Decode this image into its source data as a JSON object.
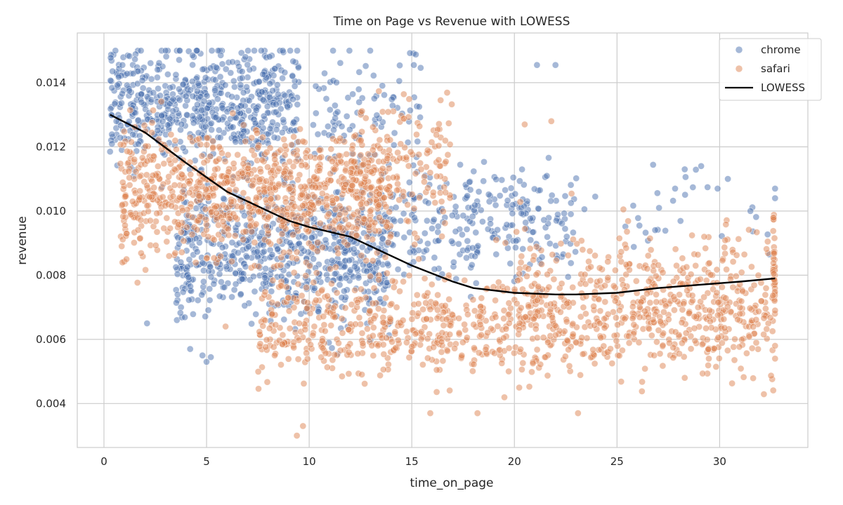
{
  "chart_data": {
    "type": "scatter",
    "title": "Time on Page vs Revenue with LOWESS",
    "xlabel": "time_on_page",
    "ylabel": "revenue",
    "xlim": [
      -1.3,
      34.3
    ],
    "ylim": [
      0.00263,
      0.01555
    ],
    "xticks": [
      0,
      5,
      10,
      15,
      20,
      25,
      30
    ],
    "yticks": [
      0.004,
      0.006,
      0.008,
      0.01,
      0.012,
      0.014
    ],
    "x_tick_labels": [
      "0",
      "5",
      "10",
      "15",
      "20",
      "25",
      "30"
    ],
    "y_tick_labels": [
      "0.004",
      "0.006",
      "0.008",
      "0.010",
      "0.012",
      "0.014"
    ],
    "grid": true,
    "legend_position": "top-right",
    "series": [
      {
        "name": "chrome",
        "color": "#4c72b0",
        "opacity": 0.5,
        "clusters": [
          {
            "x_range": [
              0.3,
              9.5
            ],
            "y_mean": 0.0133,
            "y_sd": 0.0009,
            "count": 620,
            "y_max": 0.015
          },
          {
            "x_range": [
              3.5,
              14.0
            ],
            "y_mean": 0.0088,
            "y_sd": 0.001,
            "count": 700
          },
          {
            "x_range": [
              10.0,
              15.5
            ],
            "y_mean": 0.013,
            "y_sd": 0.001,
            "count": 90,
            "y_max": 0.015
          },
          {
            "x_range": [
              14.0,
              23.0
            ],
            "y_mean": 0.0095,
            "y_sd": 0.0009,
            "count": 250
          },
          {
            "x_range": [
              23.0,
              32.7
            ],
            "y_mean": 0.01,
            "y_sd": 0.0007,
            "count": 30
          }
        ],
        "points": [
          [
            21.1,
            0.01455
          ],
          [
            22.0,
            0.01455
          ],
          [
            15.1,
            0.01455
          ],
          [
            0.3,
            0.01185
          ],
          [
            4.2,
            0.0057
          ],
          [
            4.8,
            0.0055
          ],
          [
            5.0,
            0.0053
          ],
          [
            2.1,
            0.0065
          ],
          [
            28.3,
            0.0113
          ],
          [
            29.1,
            0.0114
          ],
          [
            30.4,
            0.011
          ],
          [
            29.9,
            0.0107
          ],
          [
            32.7,
            0.0107
          ],
          [
            32.7,
            0.0104
          ],
          [
            31.5,
            0.01
          ]
        ]
      },
      {
        "name": "safari",
        "color": "#dd8452",
        "opacity": 0.5,
        "clusters": [
          {
            "x_range": [
              0.8,
              14.0
            ],
            "y_mean": 0.0105,
            "y_sd": 0.001,
            "count": 900
          },
          {
            "x_range": [
              12.0,
              17.0
            ],
            "y_mean": 0.0114,
            "y_sd": 0.001,
            "count": 160
          },
          {
            "x_range": [
              7.5,
              32.7
            ],
            "y_mean": 0.0064,
            "y_sd": 0.0008,
            "count": 900
          },
          {
            "x_range": [
              20.0,
              32.7
            ],
            "y_mean": 0.008,
            "y_sd": 0.0008,
            "count": 220
          },
          {
            "x_range": [
              32.6,
              32.7
            ],
            "y_mean": 0.0083,
            "y_sd": 0.0008,
            "count": 40
          }
        ],
        "points": [
          [
            9.4,
            0.003
          ],
          [
            9.7,
            0.0033
          ],
          [
            15.9,
            0.0037
          ],
          [
            18.2,
            0.0037
          ],
          [
            23.1,
            0.0037
          ],
          [
            0.9,
            0.0084
          ],
          [
            1.1,
            0.0085
          ],
          [
            0.9,
            0.0102
          ],
          [
            1.1,
            0.0093
          ],
          [
            21.8,
            0.0128
          ],
          [
            20.5,
            0.0127
          ],
          [
            32.7,
            0.0054
          ],
          [
            32.7,
            0.0058
          ],
          [
            32.7,
            0.0069
          ],
          [
            28.3,
            0.0048
          ]
        ]
      }
    ],
    "lowess": {
      "name": "LOWESS",
      "color": "#000000",
      "x": [
        0.3,
        2,
        4,
        6,
        8,
        9,
        10,
        12,
        13,
        15,
        17,
        18,
        20,
        22,
        23,
        25,
        27,
        29,
        31,
        32.7
      ],
      "y": [
        0.013,
        0.01245,
        0.0115,
        0.0106,
        0.01,
        0.0097,
        0.0095,
        0.0092,
        0.0089,
        0.0083,
        0.0078,
        0.0076,
        0.00745,
        0.0074,
        0.0074,
        0.00745,
        0.0076,
        0.0077,
        0.0078,
        0.0079
      ]
    }
  }
}
